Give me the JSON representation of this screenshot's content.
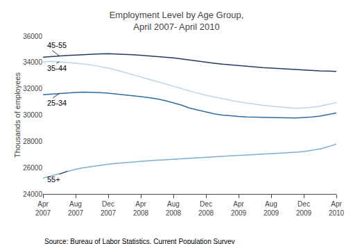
{
  "chart_data": {
    "type": "line",
    "title": "Employment Level by Age Group,\nApril 2007- April 2010",
    "y_label": "Thousands of employees",
    "source": "Source: Bureau of Labor Statistics, Current Population Survey",
    "categories": [
      "Apr\n2007",
      null,
      null,
      null,
      "Aug\n2007",
      null,
      null,
      null,
      "Dec\n2007",
      null,
      null,
      null,
      "Apr\n2008",
      null,
      null,
      null,
      "Aug\n2008",
      null,
      null,
      null,
      "Dec\n2008",
      null,
      null,
      null,
      "Apr\n2009",
      null,
      null,
      null,
      "Aug\n2009",
      null,
      null,
      null,
      "Dec\n2009",
      null,
      null,
      null,
      "Apr\n2010"
    ],
    "ylim": [
      24000,
      36000
    ],
    "yticks": [
      24000,
      26000,
      28000,
      30000,
      32000,
      34000,
      36000
    ],
    "grid": false,
    "series": [
      {
        "name": "45-55",
        "color": "#1c3d5e",
        "values": [
          34400,
          34450,
          34500,
          34530,
          34560,
          34600,
          34630,
          34650,
          34660,
          34640,
          34620,
          34580,
          34540,
          34500,
          34460,
          34420,
          34350,
          34270,
          34180,
          34100,
          34020,
          33940,
          33870,
          33810,
          33760,
          33710,
          33660,
          33610,
          33570,
          33530,
          33490,
          33450,
          33420,
          33390,
          33360,
          33340,
          33320
        ]
      },
      {
        "name": "35-44",
        "color": "#b8d4e8",
        "values": [
          34050,
          34080,
          34050,
          34000,
          33940,
          33880,
          33800,
          33700,
          33570,
          33420,
          33260,
          33080,
          32900,
          32720,
          32540,
          32360,
          32180,
          32000,
          31820,
          31660,
          31510,
          31370,
          31240,
          31120,
          31010,
          30910,
          30820,
          30740,
          30670,
          30610,
          30560,
          30520,
          30540,
          30590,
          30680,
          30820,
          30950
        ]
      },
      {
        "name": "25-34",
        "color": "#2e6b9e",
        "values": [
          31550,
          31600,
          31640,
          31680,
          31720,
          31740,
          31730,
          31700,
          31660,
          31600,
          31540,
          31470,
          31400,
          31320,
          31230,
          31100,
          30940,
          30750,
          30530,
          30370,
          30220,
          30090,
          30000,
          29940,
          29890,
          29860,
          29840,
          29820,
          29800,
          29790,
          29790,
          29780,
          29810,
          29860,
          29920,
          30060,
          30160
        ]
      },
      {
        "name": "55+",
        "color": "#7ab0d0",
        "values": [
          25200,
          25380,
          25560,
          25730,
          25880,
          25990,
          26090,
          26180,
          26260,
          26330,
          26390,
          26440,
          26490,
          26530,
          26570,
          26610,
          26640,
          26680,
          26720,
          26760,
          26800,
          26840,
          26870,
          26900,
          26930,
          26960,
          26990,
          27020,
          27050,
          27090,
          27130,
          27170,
          27230,
          27310,
          27420,
          27590,
          27800
        ]
      }
    ],
    "annotations": [
      {
        "text": "45-55",
        "x": 2,
        "y": 34500,
        "text_x": 0.3,
        "text_y": 35300
      },
      {
        "text": "35-44",
        "x": 2,
        "y": 34050,
        "text_x": 0.3,
        "text_y": 33550
      },
      {
        "text": "25-34",
        "x": 2,
        "y": 31640,
        "text_x": 0.3,
        "text_y": 30900
      },
      {
        "text": "55+",
        "x": 3,
        "y": 25730,
        "text_x": 0.3,
        "text_y": 25100
      }
    ]
  }
}
